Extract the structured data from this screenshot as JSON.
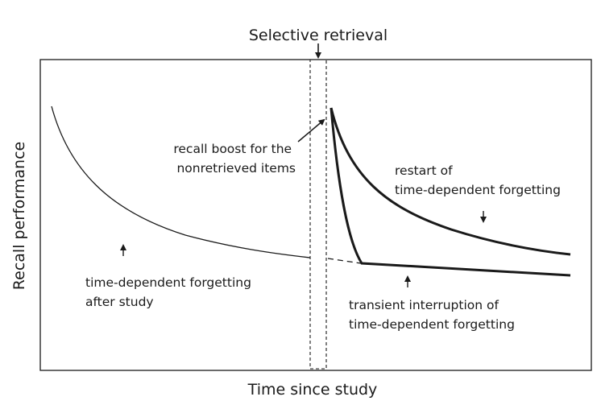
{
  "diagram": {
    "top_label": "Selective retrieval",
    "x_axis_label": "Time since study",
    "y_axis_label": "Recall performance",
    "annotations": {
      "boost": [
        "recall boost for the",
        "nonretrieved items"
      ],
      "restart": [
        "restart of",
        "time-dependent forgetting"
      ],
      "after_study": [
        "time-dependent forgetting",
        "after study"
      ],
      "transient": [
        "transient interruption of",
        "time-dependent forgetting"
      ]
    },
    "colors": {
      "line": "#1a1a1a",
      "frame": "#1a1a1a",
      "text": "#1a1a1a",
      "background": "#ffffff"
    }
  }
}
